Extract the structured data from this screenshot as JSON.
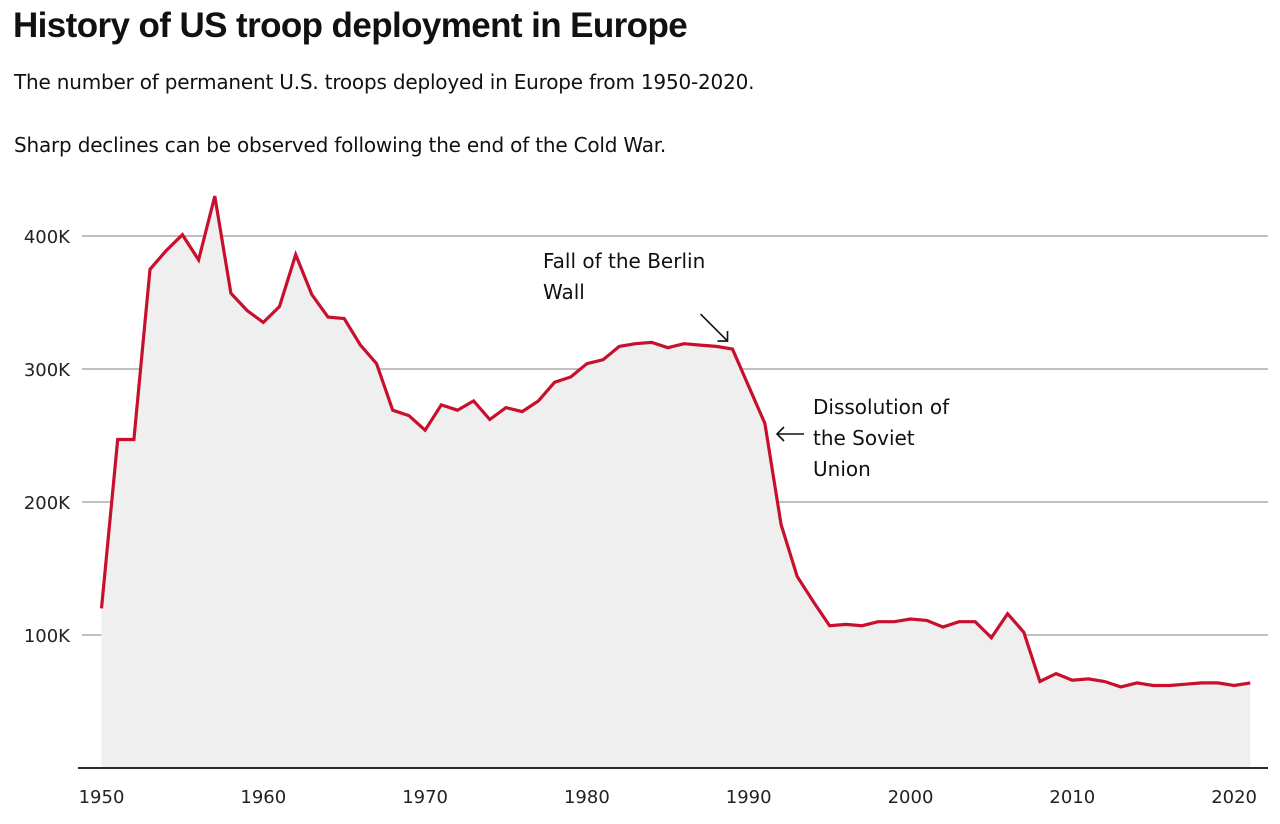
{
  "header": {
    "title": "History of US troop deployment in Europe",
    "subtitle_line1": "The number of permanent U.S. troops deployed in Europe from 1950-2020.",
    "subtitle_line2": "Sharp declines can be observed following the end of the Cold War."
  },
  "chart_data": {
    "type": "area",
    "title": "History of US troop deployment in Europe",
    "xlabel": "",
    "ylabel": "",
    "x": [
      1950,
      1951,
      1952,
      1953,
      1954,
      1955,
      1956,
      1957,
      1958,
      1959,
      1960,
      1961,
      1962,
      1963,
      1964,
      1965,
      1966,
      1967,
      1968,
      1969,
      1970,
      1971,
      1972,
      1973,
      1974,
      1975,
      1976,
      1977,
      1978,
      1979,
      1980,
      1981,
      1982,
      1983,
      1984,
      1985,
      1986,
      1987,
      1988,
      1989,
      1990,
      1991,
      1992,
      1993,
      1994,
      1995,
      1996,
      1997,
      1998,
      1999,
      2000,
      2001,
      2002,
      2003,
      2004,
      2005,
      2006,
      2007,
      2008,
      2009,
      2010,
      2011,
      2012,
      2013,
      2014,
      2015,
      2016,
      2017,
      2018,
      2019,
      2020,
      2021
    ],
    "series": [
      {
        "name": "Permanent U.S. troops in Europe",
        "color": "#C8102E",
        "fill": "#EFEFEF",
        "values": [
          120000,
          247000,
          247000,
          375000,
          389000,
          401000,
          382000,
          430000,
          357000,
          344000,
          335000,
          347000,
          386000,
          356000,
          339000,
          338000,
          318000,
          304000,
          269000,
          265000,
          254000,
          273000,
          269000,
          276000,
          262000,
          271000,
          268000,
          276000,
          290000,
          294000,
          304000,
          307000,
          317000,
          319000,
          320000,
          316000,
          319000,
          318000,
          317000,
          315000,
          287000,
          259000,
          183000,
          144000,
          125000,
          107000,
          108000,
          107000,
          110000,
          110000,
          112000,
          111000,
          106000,
          110000,
          110000,
          98000,
          116000,
          102000,
          65000,
          71000,
          66000,
          67000,
          65000,
          61000,
          64000,
          62000,
          62000,
          63000,
          64000,
          64000,
          62000,
          64000
        ]
      }
    ],
    "xlim": [
      1950,
      2021
    ],
    "ylim": [
      0,
      430000
    ],
    "yticks": [
      100000,
      200000,
      300000,
      400000
    ],
    "ytick_labels": [
      "100K",
      "200K",
      "300K",
      "400K"
    ],
    "xticks": [
      1950,
      1960,
      1970,
      1980,
      1990,
      2000,
      2010,
      2020
    ],
    "xtick_labels": [
      "1950",
      "1960",
      "1970",
      "1980",
      "1990",
      "2000",
      "2010",
      "2020"
    ],
    "grid": true,
    "legend": "none",
    "annotations": [
      {
        "lines": [
          "Fall of the Berlin",
          "Wall"
        ],
        "target_year": 1989,
        "arrow": "down-right"
      },
      {
        "lines": [
          "Dissolution of",
          "the Soviet",
          "Union"
        ],
        "target_year": 1991,
        "arrow": "left"
      }
    ]
  }
}
